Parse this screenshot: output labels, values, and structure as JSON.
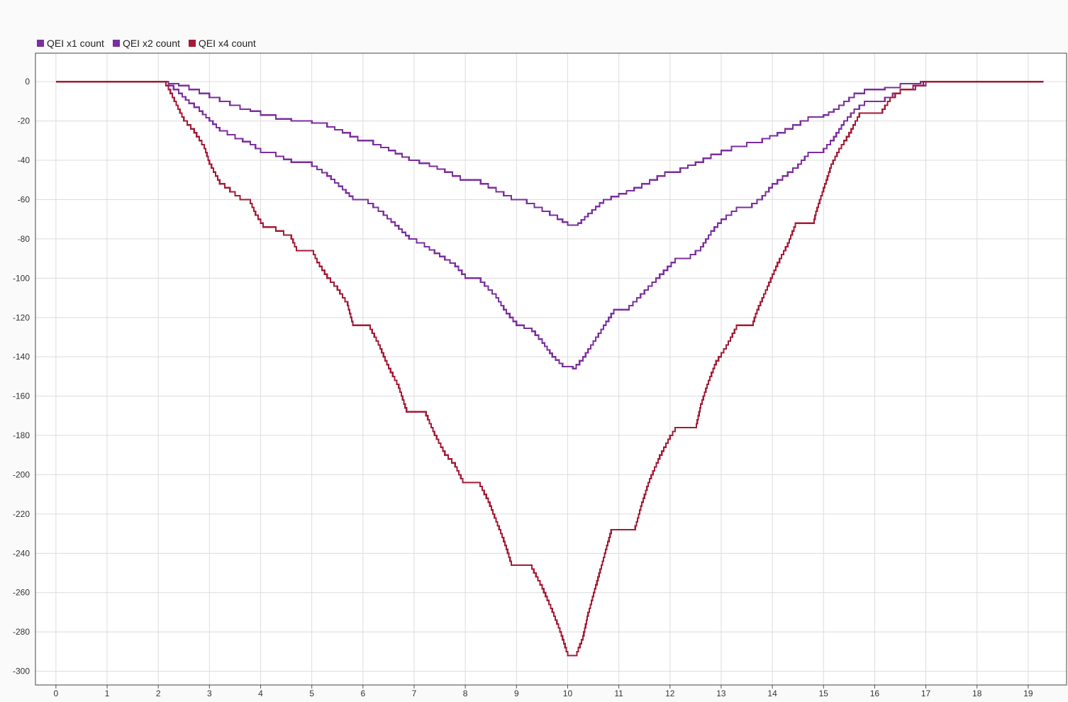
{
  "chart_data": {
    "type": "line",
    "title": "",
    "xlabel": "",
    "ylabel": "",
    "xlim": [
      -0.4,
      19.75
    ],
    "ylim": [
      -307,
      14.5
    ],
    "x_ticks": [
      0,
      1,
      2,
      3,
      4,
      5,
      6,
      7,
      8,
      9,
      10,
      11,
      12,
      13,
      14,
      15,
      16,
      17,
      18,
      19
    ],
    "y_ticks": [
      0,
      -20,
      -40,
      -60,
      -80,
      -100,
      -120,
      -140,
      -160,
      -180,
      -200,
      -220,
      -240,
      -260,
      -280,
      -300
    ],
    "grid": true,
    "legend_position": "top-left",
    "series": [
      {
        "name": "QEI x1 count",
        "color": "#7b2f9e",
        "points": [
          [
            0,
            0
          ],
          [
            2.1,
            0
          ],
          [
            2.2,
            -1
          ],
          [
            2.4,
            -2
          ],
          [
            2.6,
            -4
          ],
          [
            2.8,
            -6
          ],
          [
            3.0,
            -8
          ],
          [
            3.2,
            -10
          ],
          [
            3.4,
            -12
          ],
          [
            3.6,
            -14
          ],
          [
            3.8,
            -15
          ],
          [
            4.0,
            -17
          ],
          [
            4.3,
            -19
          ],
          [
            4.6,
            -20
          ],
          [
            5.0,
            -21
          ],
          [
            5.3,
            -23
          ],
          [
            5.6,
            -26
          ],
          [
            5.9,
            -30
          ],
          [
            6.2,
            -32
          ],
          [
            6.5,
            -35
          ],
          [
            6.9,
            -40
          ],
          [
            7.3,
            -43
          ],
          [
            7.6,
            -46
          ],
          [
            7.9,
            -50
          ],
          [
            8.3,
            -52
          ],
          [
            8.6,
            -56
          ],
          [
            8.9,
            -60
          ],
          [
            9.2,
            -62
          ],
          [
            9.5,
            -66
          ],
          [
            9.8,
            -70
          ],
          [
            10.0,
            -73
          ],
          [
            10.2,
            -72
          ],
          [
            10.4,
            -67
          ],
          [
            10.7,
            -60
          ],
          [
            11.0,
            -57
          ],
          [
            11.3,
            -54
          ],
          [
            11.6,
            -50
          ],
          [
            11.9,
            -46
          ],
          [
            12.2,
            -44
          ],
          [
            12.5,
            -41
          ],
          [
            12.8,
            -37
          ],
          [
            13.2,
            -33
          ],
          [
            13.5,
            -31
          ],
          [
            13.8,
            -29
          ],
          [
            14.1,
            -26
          ],
          [
            14.4,
            -22
          ],
          [
            14.7,
            -18
          ],
          [
            15.0,
            -17
          ],
          [
            15.2,
            -14
          ],
          [
            15.4,
            -10
          ],
          [
            15.6,
            -6
          ],
          [
            15.8,
            -4
          ],
          [
            16.2,
            -3
          ],
          [
            16.5,
            -1
          ],
          [
            16.9,
            0
          ],
          [
            19.3,
            0
          ]
        ]
      },
      {
        "name": "QEI x2 count",
        "color": "#7b2f9e",
        "points": [
          [
            0,
            0
          ],
          [
            2.1,
            0
          ],
          [
            2.2,
            -2
          ],
          [
            2.4,
            -6
          ],
          [
            2.6,
            -11
          ],
          [
            2.8,
            -15
          ],
          [
            3.0,
            -20
          ],
          [
            3.2,
            -25
          ],
          [
            3.5,
            -29
          ],
          [
            3.8,
            -32
          ],
          [
            4.0,
            -36
          ],
          [
            4.3,
            -38
          ],
          [
            4.6,
            -41
          ],
          [
            5.0,
            -43
          ],
          [
            5.3,
            -48
          ],
          [
            5.6,
            -55
          ],
          [
            5.8,
            -60
          ],
          [
            6.1,
            -62
          ],
          [
            6.4,
            -68
          ],
          [
            6.7,
            -75
          ],
          [
            6.9,
            -80
          ],
          [
            7.2,
            -84
          ],
          [
            7.5,
            -89
          ],
          [
            7.8,
            -94
          ],
          [
            8.0,
            -100
          ],
          [
            8.3,
            -102
          ],
          [
            8.6,
            -110
          ],
          [
            8.8,
            -118
          ],
          [
            9.0,
            -124
          ],
          [
            9.3,
            -127
          ],
          [
            9.5,
            -133
          ],
          [
            9.7,
            -140
          ],
          [
            9.9,
            -145
          ],
          [
            10.1,
            -146
          ],
          [
            10.3,
            -140
          ],
          [
            10.5,
            -132
          ],
          [
            10.7,
            -124
          ],
          [
            10.9,
            -116
          ],
          [
            11.2,
            -114
          ],
          [
            11.5,
            -106
          ],
          [
            11.8,
            -98
          ],
          [
            12.1,
            -90
          ],
          [
            12.4,
            -88
          ],
          [
            12.6,
            -84
          ],
          [
            12.8,
            -76
          ],
          [
            13.0,
            -70
          ],
          [
            13.3,
            -64
          ],
          [
            13.6,
            -62
          ],
          [
            13.8,
            -58
          ],
          [
            14.0,
            -52
          ],
          [
            14.3,
            -46
          ],
          [
            14.5,
            -42
          ],
          [
            14.7,
            -36
          ],
          [
            15.0,
            -34
          ],
          [
            15.2,
            -28
          ],
          [
            15.4,
            -20
          ],
          [
            15.6,
            -14
          ],
          [
            15.8,
            -10
          ],
          [
            16.2,
            -8
          ],
          [
            16.5,
            -4
          ],
          [
            16.8,
            -2
          ],
          [
            17.0,
            0
          ],
          [
            19.3,
            0
          ]
        ]
      },
      {
        "name": "QEI x4 count",
        "color": "#a31a35",
        "points": [
          [
            0,
            0
          ],
          [
            2.1,
            0
          ],
          [
            2.2,
            -4
          ],
          [
            2.35,
            -12
          ],
          [
            2.5,
            -20
          ],
          [
            2.7,
            -26
          ],
          [
            2.9,
            -34
          ],
          [
            3.0,
            -42
          ],
          [
            3.2,
            -52
          ],
          [
            3.4,
            -56
          ],
          [
            3.6,
            -60
          ],
          [
            3.8,
            -62
          ],
          [
            3.9,
            -68
          ],
          [
            4.05,
            -74
          ],
          [
            4.3,
            -76
          ],
          [
            4.6,
            -80
          ],
          [
            4.7,
            -86
          ],
          [
            5.0,
            -86
          ],
          [
            5.1,
            -92
          ],
          [
            5.3,
            -100
          ],
          [
            5.5,
            -106
          ],
          [
            5.7,
            -114
          ],
          [
            5.8,
            -124
          ],
          [
            6.1,
            -124
          ],
          [
            6.3,
            -134
          ],
          [
            6.5,
            -146
          ],
          [
            6.7,
            -156
          ],
          [
            6.85,
            -168
          ],
          [
            7.2,
            -168
          ],
          [
            7.4,
            -180
          ],
          [
            7.6,
            -190
          ],
          [
            7.8,
            -196
          ],
          [
            7.95,
            -204
          ],
          [
            8.25,
            -204
          ],
          [
            8.45,
            -214
          ],
          [
            8.6,
            -224
          ],
          [
            8.75,
            -234
          ],
          [
            8.9,
            -246
          ],
          [
            9.3,
            -248
          ],
          [
            9.5,
            -258
          ],
          [
            9.7,
            -270
          ],
          [
            9.85,
            -280
          ],
          [
            9.95,
            -288
          ],
          [
            10.0,
            -292
          ],
          [
            10.15,
            -292
          ],
          [
            10.3,
            -282
          ],
          [
            10.4,
            -270
          ],
          [
            10.55,
            -256
          ],
          [
            10.7,
            -242
          ],
          [
            10.85,
            -228
          ],
          [
            11.3,
            -228
          ],
          [
            11.45,
            -214
          ],
          [
            11.6,
            -202
          ],
          [
            11.8,
            -190
          ],
          [
            12.0,
            -180
          ],
          [
            12.1,
            -176
          ],
          [
            12.5,
            -176
          ],
          [
            12.6,
            -164
          ],
          [
            12.75,
            -152
          ],
          [
            12.9,
            -142
          ],
          [
            13.1,
            -134
          ],
          [
            13.3,
            -124
          ],
          [
            13.6,
            -124
          ],
          [
            13.7,
            -116
          ],
          [
            13.9,
            -104
          ],
          [
            14.1,
            -92
          ],
          [
            14.3,
            -82
          ],
          [
            14.45,
            -72
          ],
          [
            14.8,
            -72
          ],
          [
            14.85,
            -66
          ],
          [
            15.0,
            -54
          ],
          [
            15.15,
            -42
          ],
          [
            15.3,
            -34
          ],
          [
            15.5,
            -26
          ],
          [
            15.7,
            -16
          ],
          [
            16.1,
            -16
          ],
          [
            16.3,
            -8
          ],
          [
            16.5,
            -4
          ],
          [
            16.75,
            -2
          ],
          [
            16.95,
            0
          ],
          [
            19.3,
            0
          ]
        ]
      }
    ]
  }
}
